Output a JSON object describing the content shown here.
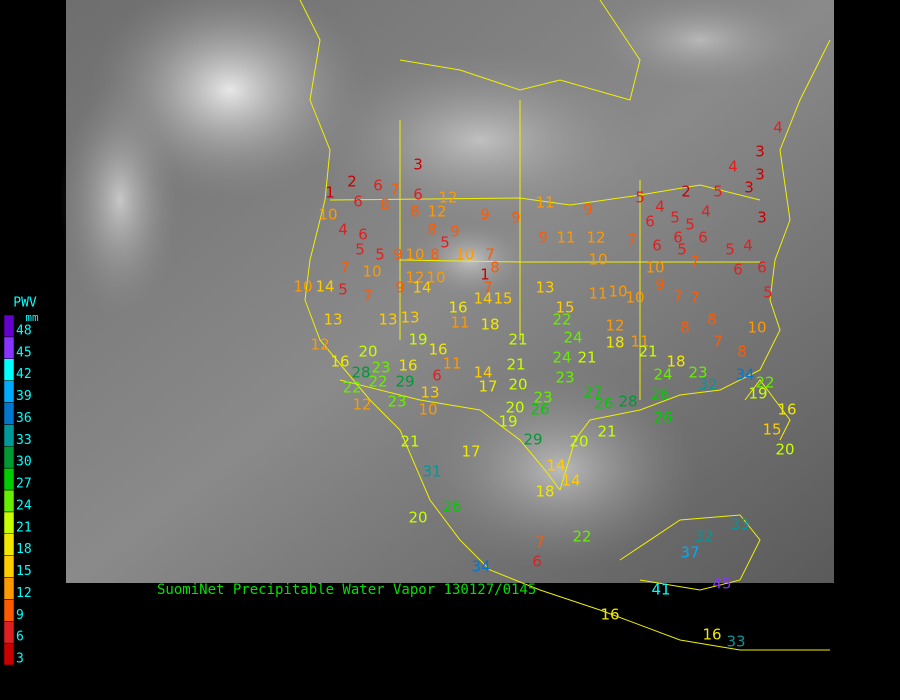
{
  "caption": "SuomiNet Precipitable Water Vapor 130127/0145",
  "legend": {
    "title": "PWV",
    "unit": "mm",
    "ticks": [
      3,
      6,
      9,
      12,
      15,
      18,
      21,
      24,
      27,
      30,
      33,
      36,
      39,
      42,
      45,
      48
    ],
    "colors": [
      "#c80000",
      "#e02020",
      "#ff5a00",
      "#ff9900",
      "#ffcc00",
      "#f0e800",
      "#c8ff00",
      "#66ee00",
      "#00cc00",
      "#009933",
      "#009999",
      "#0077cc",
      "#00aaff",
      "#00ffff",
      "#8833ff",
      "#6600cc"
    ]
  },
  "stations": [
    3,
    4,
    4,
    3,
    3,
    3,
    2,
    5,
    5,
    4,
    6,
    5,
    4,
    5,
    6,
    6,
    3,
    7,
    6,
    5,
    5,
    4,
    6,
    6,
    5,
    7,
    2,
    6,
    7,
    6,
    12,
    1,
    6,
    8,
    8,
    12,
    10,
    9,
    9,
    11,
    9,
    4,
    6,
    8,
    9,
    5,
    5,
    5,
    9,
    10,
    8,
    10,
    7,
    9,
    11,
    12,
    10,
    8,
    1,
    7,
    10,
    12,
    10,
    10,
    14,
    5,
    7,
    9,
    14,
    7,
    15,
    14,
    13,
    10,
    9,
    7,
    7,
    16,
    11,
    10,
    10,
    13,
    13,
    13,
    11,
    18,
    15,
    22,
    12,
    11,
    8,
    8,
    10,
    12,
    19,
    16,
    16,
    20,
    16,
    11,
    21,
    24,
    24,
    21,
    18,
    21,
    18,
    7,
    8,
    28,
    23,
    29,
    6,
    14,
    17,
    21,
    20,
    23,
    27,
    24,
    23,
    32,
    34,
    22,
    19,
    22,
    22,
    12,
    23,
    13,
    10,
    23,
    20,
    19,
    26,
    26,
    28,
    26,
    26,
    16,
    15,
    20,
    21,
    17,
    29,
    20,
    21,
    14,
    14,
    18,
    31,
    26,
    20,
    22,
    7,
    6,
    37,
    32,
    33,
    34,
    45,
    41,
    16,
    16,
    33
  ]
}
